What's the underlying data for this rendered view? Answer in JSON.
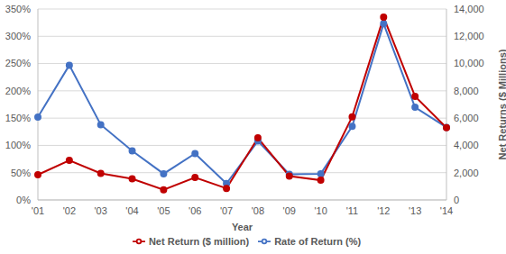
{
  "chart_data": {
    "type": "line",
    "categories": [
      "'01",
      "'02",
      "'03",
      "'04",
      "'05",
      "'06",
      "'07",
      "'08",
      "'09",
      "'10",
      "'11",
      "'12",
      "'13",
      "'14"
    ],
    "x_label": "Year",
    "y2_label": "Net Returns ($ Millions)",
    "series": [
      {
        "name": "Rate of Return (%)",
        "color": "#4472c4",
        "marker": "circle",
        "line_style": "solid",
        "axis": "y",
        "values": [
          152,
          247,
          138,
          90,
          48,
          85,
          30,
          108,
          47,
          48,
          135,
          323,
          170,
          133
        ]
      },
      {
        "name": "Net Return ($ million)",
        "color": "#c00000",
        "marker": "circle",
        "line_style": "solid",
        "axis": "y2",
        "values": [
          1850,
          2900,
          1950,
          1550,
          750,
          1650,
          850,
          4550,
          1750,
          1450,
          6100,
          13400,
          7600,
          5300
        ]
      }
    ],
    "ylim": [
      0,
      350
    ],
    "yticks": [
      {
        "value": 0,
        "label": "0%"
      },
      {
        "value": 50,
        "label": "50%"
      },
      {
        "value": 100,
        "label": "100%"
      },
      {
        "value": 150,
        "label": "150%"
      },
      {
        "value": 200,
        "label": "200%"
      },
      {
        "value": 250,
        "label": "250%"
      },
      {
        "value": 300,
        "label": "300%"
      },
      {
        "value": 350,
        "label": "350%"
      }
    ],
    "y2lim": [
      0,
      14000
    ],
    "y2ticks": [
      0,
      {
        "value": 2000,
        "label": "2,000"
      },
      {
        "value": 4000,
        "label": "4,000"
      },
      {
        "value": 6000,
        "label": "6,000"
      },
      {
        "value": 8000,
        "label": "8,000"
      },
      {
        "value": 10000,
        "label": "10,000"
      },
      {
        "value": 12000,
        "label": "12,000"
      },
      {
        "value": 14000,
        "label": "14,000"
      }
    ],
    "grid": true,
    "legend": "bottom"
  }
}
